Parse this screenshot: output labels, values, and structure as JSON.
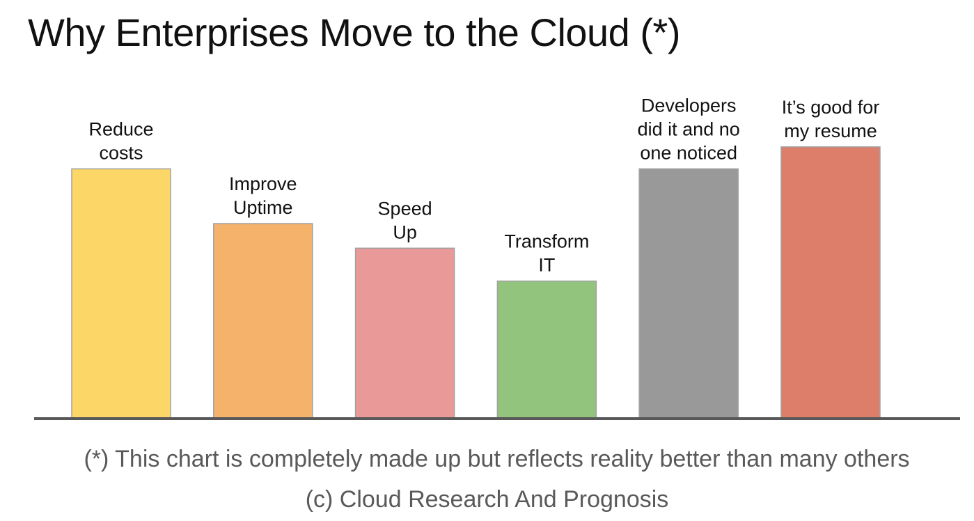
{
  "title": "Why Enterprises Move to the Cloud (*)",
  "chart_data": {
    "type": "bar",
    "categories": [
      [
        "Reduce",
        "costs"
      ],
      [
        "Improve",
        "Uptime"
      ],
      [
        "Speed",
        "Up"
      ],
      [
        "Transform",
        "IT"
      ],
      [
        "Developers",
        "did it and no",
        "one noticed"
      ],
      [
        "It’s good for",
        "my resume"
      ]
    ],
    "values": [
      91,
      71,
      62,
      50,
      91,
      99
    ],
    "ylim": [
      0,
      100
    ],
    "colors": [
      "#fdd668",
      "#f5b26b",
      "#ea9999",
      "#93c47d",
      "#999999",
      "#dd7e6b"
    ],
    "axis_line_color": "#595959",
    "bar_border_color": "#a0a0a0"
  },
  "footnote": "(*) This chart is completely made up but reflects reality better than many others",
  "copyright": "(c) Cloud Research And Prognosis"
}
